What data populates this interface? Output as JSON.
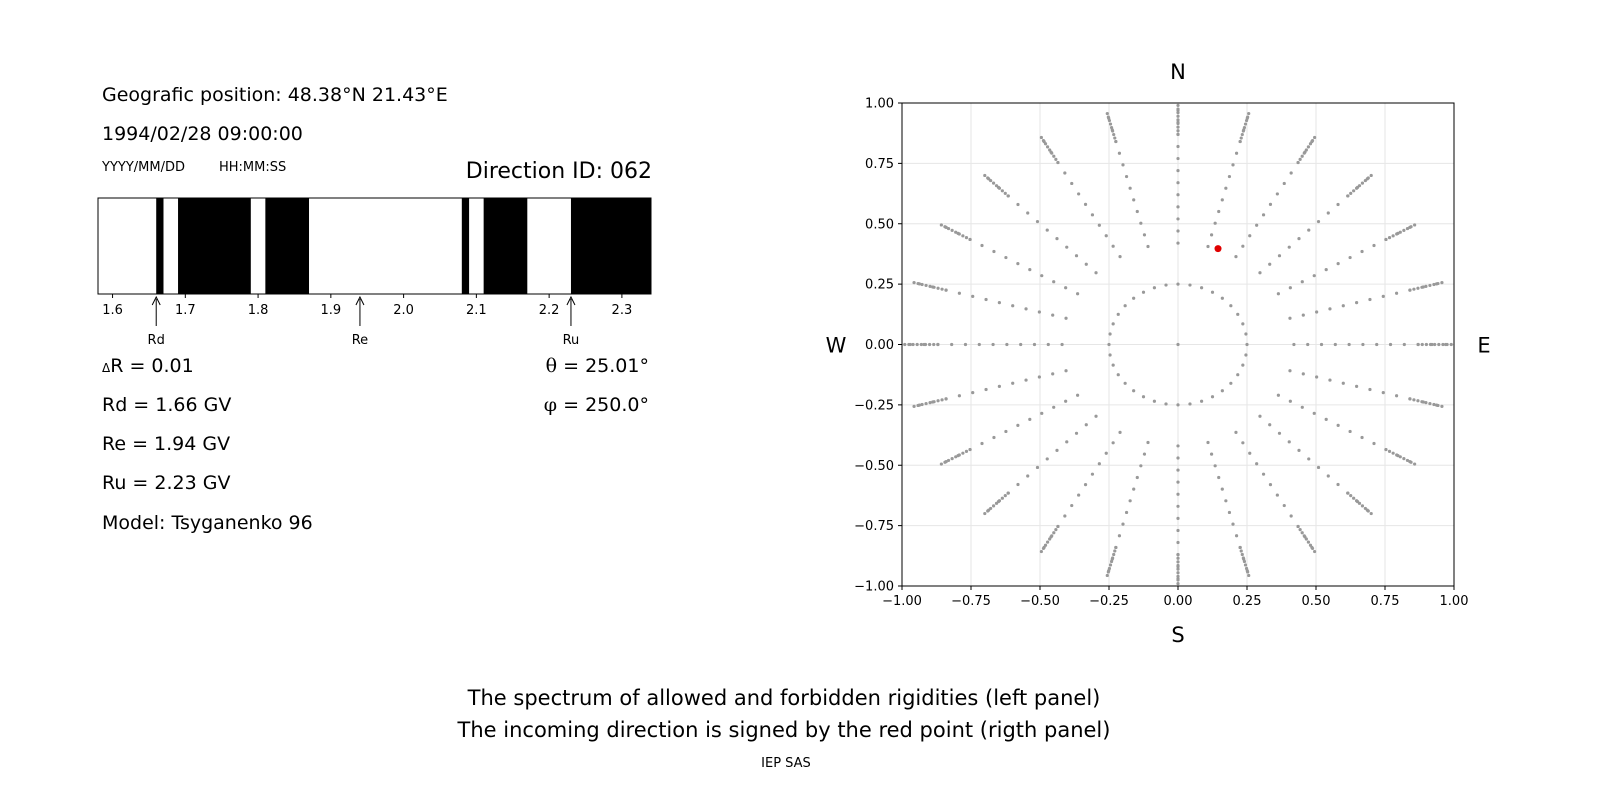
{
  "info": {
    "position": "Geografic position: 48.38°N 21.43°E",
    "datetime": "1994/02/28 09:00:00",
    "date_format": "YYYY/MM/DD",
    "time_format": "HH:MM:SS",
    "direction_id": "Direction ID: 062",
    "delta_r": "R = 0.01",
    "delta_symbol": "Δ",
    "rd_value": "Rd = 1.66 GV",
    "re_value": "Re = 1.94 GV",
    "ru_value": "Ru = 2.23 GV",
    "model": "Model: Tsyganenko 96",
    "theta_symbol": "θ",
    "theta_value": " = 25.01°",
    "phi_symbol": "φ",
    "phi_value": " = 250.0°"
  },
  "footer": {
    "line1": "The spectrum of allowed and forbidden rigidities (left panel)",
    "line2": "The incoming direction is signed by the red point (rigth panel)",
    "credit": "IEP SAS"
  },
  "chart_data": [
    {
      "type": "spectrum",
      "xlim": [
        1.58,
        2.34
      ],
      "ticks": [
        1.6,
        1.7,
        1.8,
        1.9,
        2.0,
        2.1,
        2.2,
        2.3
      ],
      "tick_labels": [
        "1.6",
        "1.7",
        "1.8",
        "1.9",
        "2.0",
        "2.1",
        "2.2",
        "2.3"
      ],
      "forbidden_bands": [
        [
          1.66,
          1.67
        ],
        [
          1.69,
          1.79
        ],
        [
          1.81,
          1.87
        ],
        [
          2.08,
          2.09
        ],
        [
          2.11,
          2.17
        ],
        [
          2.23,
          2.34
        ]
      ],
      "markers": [
        {
          "label": "Rd",
          "value": 1.66
        },
        {
          "label": "Re",
          "value": 1.94
        },
        {
          "label": "Ru",
          "value": 2.23
        }
      ]
    },
    {
      "type": "scatter",
      "xlim": [
        -1.0,
        1.0
      ],
      "ylim": [
        -1.0,
        1.0
      ],
      "x_ticks": [
        -1.0,
        -0.75,
        -0.5,
        -0.25,
        0.0,
        0.25,
        0.5,
        0.75,
        1.0
      ],
      "y_ticks": [
        -1.0,
        -0.75,
        -0.5,
        -0.25,
        0.0,
        0.25,
        0.5,
        0.75,
        1.0
      ],
      "x_tick_labels": [
        "−1.00",
        "−0.75",
        "−0.50",
        "−0.25",
        "0.00",
        "0.25",
        "0.50",
        "0.75",
        "1.00"
      ],
      "y_tick_labels": [
        "−1.00",
        "−0.75",
        "−0.50",
        "−0.25",
        "0.00",
        "0.25",
        "0.50",
        "0.75",
        "1.00"
      ],
      "grid": true,
      "compass": {
        "north": "N",
        "south": "S",
        "east": "E",
        "west": "W"
      },
      "grid_color": "#999999",
      "highlight": {
        "x": 0.145,
        "y": 0.397,
        "color": "#e00000"
      }
    }
  ]
}
